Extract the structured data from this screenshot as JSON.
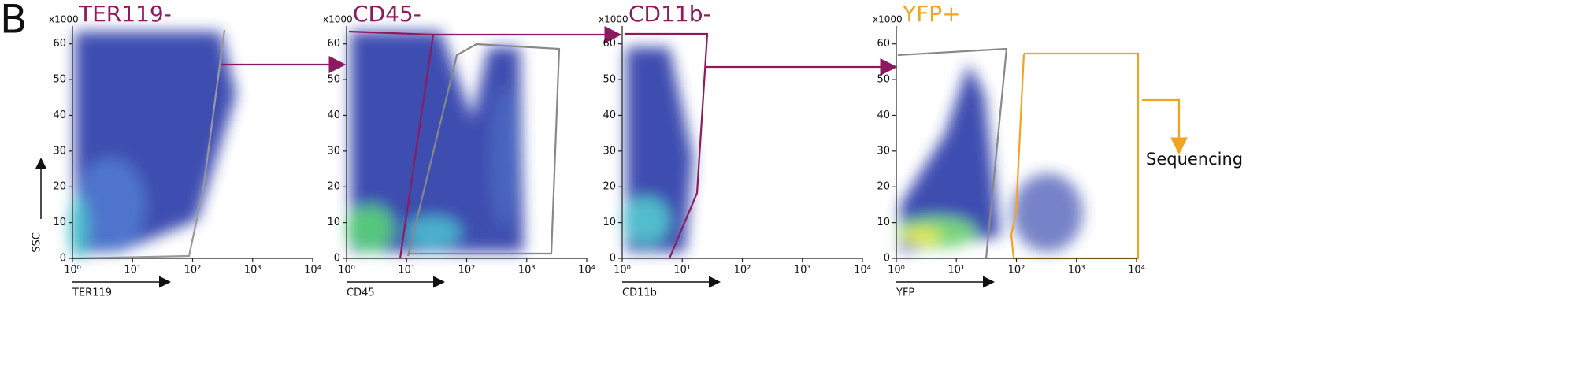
{
  "panel_label": "B",
  "annotation": "Sequencing",
  "chart_data": [
    {
      "type": "scatter",
      "title": "TER119-",
      "title_color": "#8b1a5e",
      "x_label": "TER119",
      "y_label": "SSC",
      "y_unit": "x1000",
      "log_x": true,
      "xlim": [
        1,
        10000
      ],
      "ylim": [
        0,
        65
      ],
      "xticks": [
        {
          "value": 1,
          "label": "10⁰"
        },
        {
          "value": 10,
          "label": "10¹"
        },
        {
          "value": 100,
          "label": "10²"
        },
        {
          "value": 1000,
          "label": "10³"
        },
        {
          "value": 10000,
          "label": "10⁴"
        }
      ],
      "yticks": [
        0,
        10,
        20,
        30,
        40,
        50,
        60
      ]
    },
    {
      "type": "scatter",
      "title": "CD45-",
      "title_color": "#8b1a5e",
      "x_label": "CD45",
      "y_unit": "x1000",
      "log_x": true,
      "xlim": [
        1,
        10000
      ],
      "ylim": [
        0,
        65
      ],
      "xticks": [
        {
          "value": 1,
          "label": "10⁰"
        },
        {
          "value": 10,
          "label": "10¹"
        },
        {
          "value": 100,
          "label": "10²"
        },
        {
          "value": 1000,
          "label": "10³"
        },
        {
          "value": 10000,
          "label": "10⁴"
        }
      ],
      "yticks": [
        0,
        10,
        20,
        30,
        40,
        50,
        60
      ]
    },
    {
      "type": "scatter",
      "title": "CD11b-",
      "title_color": "#8b1a5e",
      "x_label": "CD11b",
      "y_unit": "x1000",
      "log_x": true,
      "xlim": [
        1,
        10000
      ],
      "ylim": [
        0,
        65
      ],
      "xticks": [
        {
          "value": 1,
          "label": "10⁰"
        },
        {
          "value": 10,
          "label": "10¹"
        },
        {
          "value": 100,
          "label": "10²"
        },
        {
          "value": 1000,
          "label": "10³"
        },
        {
          "value": 10000,
          "label": "10⁴"
        }
      ],
      "yticks": [
        0,
        10,
        20,
        30,
        40,
        50,
        60
      ]
    },
    {
      "type": "scatter",
      "title": "YFP+",
      "title_color": "#f0a422",
      "x_label": "YFP",
      "y_unit": "x1000",
      "log_x": true,
      "xlim": [
        1,
        10000
      ],
      "ylim": [
        0,
        65
      ],
      "xticks": [
        {
          "value": 1,
          "label": "10⁰"
        },
        {
          "value": 10,
          "label": "10¹"
        },
        {
          "value": 100,
          "label": "10²"
        },
        {
          "value": 1000,
          "label": "10³"
        },
        {
          "value": 10000,
          "label": "10⁴"
        }
      ],
      "yticks": [
        0,
        10,
        20,
        30,
        40,
        50,
        60
      ]
    }
  ]
}
